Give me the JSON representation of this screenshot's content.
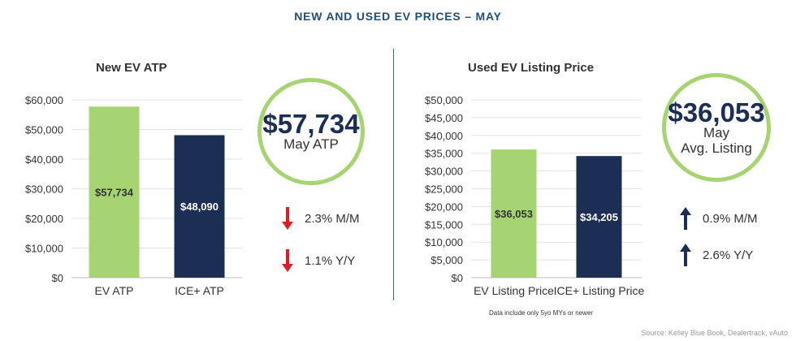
{
  "title": "NEW AND USED EV PRICES – MAY",
  "colors": {
    "ev": "#a6d472",
    "ice": "#1c2e54",
    "down": "#d92027",
    "up": "#1c2e54",
    "ring": "#a6d472"
  },
  "new_panel": {
    "title": "New EV ATP",
    "ring_value": "$57,734",
    "ring_label": "May ATP",
    "stats": [
      {
        "direction": "down",
        "text": "2.3% M/M"
      },
      {
        "direction": "down",
        "text": "1.1% Y/Y"
      }
    ]
  },
  "used_panel": {
    "title": "Used EV Listing Price",
    "ring_value": "$36,053",
    "ring_line1": "May",
    "ring_line2": "Avg. Listing",
    "stats": [
      {
        "direction": "up",
        "text": "0.9% M/M"
      },
      {
        "direction": "up",
        "text": "2.6% Y/Y"
      }
    ]
  },
  "footnote": "Data include only 5yo MYs or newer",
  "source": "Source: Kelley Blue Book, Dealertrack, vAuto",
  "chart_data": [
    {
      "type": "bar",
      "title": "New EV ATP",
      "categories": [
        "EV ATP",
        "ICE+ ATP"
      ],
      "values": [
        57734,
        48090
      ],
      "data_labels": [
        "$57,734",
        "$48,090"
      ],
      "bar_colors": [
        "#a6d472",
        "#1c2e54"
      ],
      "label_colors": [
        "#333333",
        "#ffffff"
      ],
      "ylim": [
        0,
        60000
      ],
      "yticks": [
        0,
        10000,
        20000,
        30000,
        40000,
        50000,
        60000
      ],
      "ytick_labels": [
        "$0",
        "$10,000",
        "$20,000",
        "$30,000",
        "$40,000",
        "$50,000",
        "$60,000"
      ],
      "grid": true
    },
    {
      "type": "bar",
      "title": "Used EV Listing Price",
      "categories": [
        "EV Listing Price",
        "ICE+ Listing Price"
      ],
      "values": [
        36053,
        34205
      ],
      "data_labels": [
        "$36,053",
        "$34,205"
      ],
      "bar_colors": [
        "#a6d472",
        "#1c2e54"
      ],
      "label_colors": [
        "#333333",
        "#ffffff"
      ],
      "ylim": [
        0,
        50000
      ],
      "yticks": [
        0,
        5000,
        10000,
        15000,
        20000,
        25000,
        30000,
        35000,
        40000,
        45000,
        50000
      ],
      "ytick_labels": [
        "$0",
        "$5,000",
        "$10,000",
        "$15,000",
        "$20,000",
        "$25,000",
        "$30,000",
        "$35,000",
        "$40,000",
        "$45,000",
        "$50,000"
      ],
      "grid": true
    }
  ]
}
